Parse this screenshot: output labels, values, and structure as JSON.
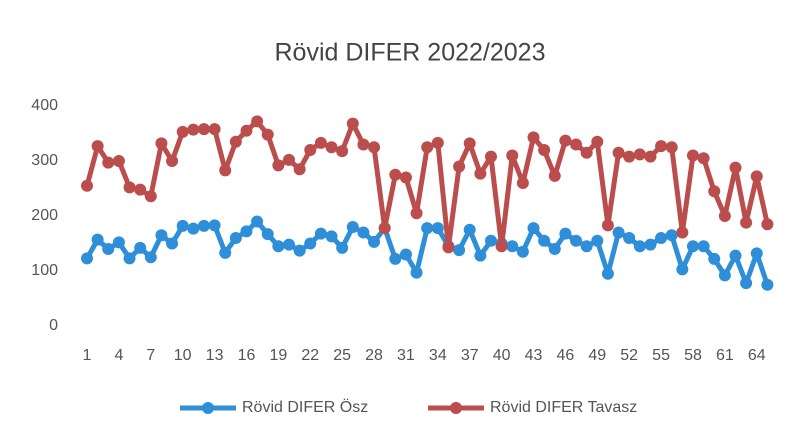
{
  "chart_data": {
    "type": "line",
    "title": "Rövid DIFER 2022/2023",
    "x": [
      1,
      2,
      3,
      4,
      5,
      6,
      7,
      8,
      9,
      10,
      11,
      12,
      13,
      14,
      15,
      16,
      17,
      18,
      19,
      20,
      21,
      22,
      23,
      24,
      25,
      26,
      27,
      28,
      29,
      30,
      31,
      32,
      33,
      34,
      35,
      36,
      37,
      38,
      39,
      40,
      41,
      42,
      43,
      44,
      45,
      46,
      47,
      48,
      49,
      50,
      51,
      52,
      53,
      54,
      55,
      56,
      57,
      58,
      59,
      60,
      61,
      62,
      63,
      64,
      65
    ],
    "xlim": [
      0.5,
      65.5
    ],
    "xticks": [
      1,
      4,
      7,
      10,
      13,
      16,
      19,
      22,
      25,
      28,
      31,
      34,
      37,
      40,
      43,
      46,
      49,
      52,
      55,
      58,
      61,
      64
    ],
    "ylim": [
      0,
      400
    ],
    "yticks": [
      0,
      100,
      200,
      300,
      400
    ],
    "grid": false,
    "legend": "bottom",
    "series": [
      {
        "name": "Rövid DIFER Ösz",
        "color": "#2e8fd8",
        "values": [
          123,
          157,
          140,
          152,
          123,
          142,
          125,
          165,
          150,
          182,
          177,
          182,
          183,
          133,
          160,
          172,
          190,
          167,
          145,
          148,
          137,
          150,
          168,
          163,
          142,
          180,
          170,
          153,
          178,
          122,
          130,
          97,
          178,
          178,
          145,
          138,
          175,
          128,
          155,
          150,
          145,
          135,
          178,
          155,
          140,
          168,
          155,
          145,
          155,
          95,
          170,
          160,
          145,
          148,
          160,
          165,
          103,
          145,
          145,
          122,
          92,
          128,
          78,
          132,
          75
        ]
      },
      {
        "name": "Rövid DIFER Tavasz",
        "color": "#bb4d4d",
        "values": [
          255,
          327,
          297,
          300,
          252,
          248,
          236,
          332,
          300,
          353,
          357,
          358,
          358,
          283,
          335,
          355,
          372,
          348,
          292,
          302,
          285,
          320,
          333,
          325,
          318,
          368,
          330,
          325,
          178,
          275,
          270,
          205,
          325,
          333,
          143,
          290,
          332,
          277,
          308,
          145,
          310,
          260,
          343,
          320,
          273,
          337,
          330,
          315,
          335,
          183,
          315,
          308,
          312,
          308,
          327,
          325,
          170,
          310,
          305,
          245,
          200,
          288,
          188,
          272,
          185
        ]
      }
    ]
  }
}
